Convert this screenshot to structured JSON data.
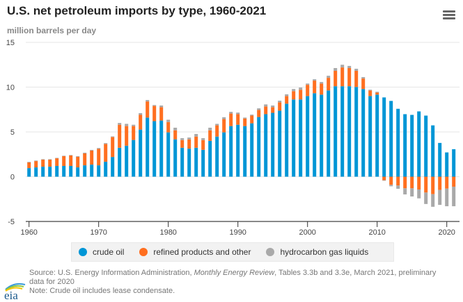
{
  "header": {
    "title": "U.S. net petroleum imports by type, 1960-2021",
    "subtitle": "million barrels per day",
    "menu_icon": "hamburger-menu-icon"
  },
  "colors": {
    "crude": "#0096d6",
    "refined": "#ff6f20",
    "hgl": "#a9a9a9",
    "grid": "#e6e6e6",
    "axis": "#888888"
  },
  "legend": [
    {
      "label": "crude oil",
      "color": "#0096d6"
    },
    {
      "label": "refined products and other",
      "color": "#ff6f20"
    },
    {
      "label": "hydrocarbon gas liquids",
      "color": "#a9a9a9"
    }
  ],
  "footer": {
    "source_prefix": "Source: U.S. Energy Information Administration, ",
    "source_italic": "Monthly Energy Review",
    "source_suffix": ", Tables 3.3b and 3.3e, March 2021, preliminary data for 2020",
    "note": "Note: Crude oil includes lease condensate.",
    "logo_text": "eia"
  },
  "chart_data": {
    "type": "bar",
    "stacked": true,
    "title": "U.S. net petroleum imports by type, 1960-2021",
    "ylabel": "million barrels per day",
    "xlabel": "",
    "ylim": [
      -5,
      15
    ],
    "yticks": [
      -5,
      0,
      5,
      10,
      15
    ],
    "xticks": [
      1960,
      1970,
      1980,
      1990,
      2000,
      2010,
      2020
    ],
    "grid": true,
    "legend_position": "bottom",
    "x": [
      1960,
      1961,
      1962,
      1963,
      1964,
      1965,
      1966,
      1967,
      1968,
      1969,
      1970,
      1971,
      1972,
      1973,
      1974,
      1975,
      1976,
      1977,
      1978,
      1979,
      1980,
      1981,
      1982,
      1983,
      1984,
      1985,
      1986,
      1987,
      1988,
      1989,
      1990,
      1991,
      1992,
      1993,
      1994,
      1995,
      1996,
      1997,
      1998,
      1999,
      2000,
      2001,
      2002,
      2003,
      2004,
      2005,
      2006,
      2007,
      2008,
      2009,
      2010,
      2011,
      2012,
      2013,
      2014,
      2015,
      2016,
      2017,
      2018,
      2019,
      2020,
      2021
    ],
    "series": [
      {
        "name": "crude oil",
        "values": [
          0.96,
          1.04,
          1.12,
          1.12,
          1.2,
          1.2,
          1.2,
          1.04,
          1.27,
          1.35,
          1.27,
          1.67,
          2.2,
          3.23,
          3.46,
          4.1,
          5.26,
          6.6,
          6.2,
          6.27,
          4.95,
          4.17,
          3.23,
          3.13,
          3.23,
          3.0,
          4.0,
          4.48,
          4.95,
          5.65,
          5.8,
          5.65,
          5.96,
          6.66,
          6.98,
          7.13,
          7.37,
          8.15,
          8.62,
          8.62,
          9.0,
          9.32,
          9.16,
          9.63,
          10.1,
          10.1,
          10.1,
          10.02,
          9.79,
          9.0,
          9.16,
          8.85,
          8.46,
          7.58,
          6.98,
          6.9,
          7.29,
          6.82,
          5.73,
          3.77,
          2.71,
          3.07
        ]
      },
      {
        "name": "refined products and other",
        "values": [
          0.63,
          0.7,
          0.78,
          0.78,
          0.85,
          1.09,
          1.17,
          1.17,
          1.33,
          1.56,
          1.83,
          1.98,
          2.23,
          2.57,
          2.19,
          1.55,
          1.64,
          1.8,
          1.7,
          1.49,
          1.15,
          1.01,
          0.86,
          1.04,
          1.25,
          1.09,
          1.18,
          1.25,
          1.48,
          1.4,
          1.18,
          0.85,
          0.86,
          0.79,
          0.86,
          0.63,
          0.93,
          0.85,
          0.93,
          1.09,
          1.26,
          1.41,
          1.24,
          1.41,
          1.72,
          2.1,
          2.03,
          1.8,
          1.17,
          0.63,
          0.24,
          -0.39,
          -0.91,
          -0.99,
          -1.3,
          -1.3,
          -1.43,
          -1.77,
          -1.95,
          -1.48,
          -1.33,
          -1.12
        ]
      },
      {
        "name": "hydrocarbon gas liquids",
        "values": [
          0.06,
          0.06,
          0.05,
          0.05,
          0.05,
          0.05,
          0.05,
          0.08,
          0.08,
          0.08,
          0.1,
          0.1,
          0.07,
          0.2,
          0.25,
          0.15,
          0.2,
          0.16,
          0.1,
          0.19,
          0.26,
          0.29,
          0.21,
          0.2,
          0.29,
          0.21,
          0.29,
          0.17,
          0.21,
          0.19,
          0.18,
          0.1,
          0.11,
          0.18,
          0.23,
          0.19,
          0.19,
          0.2,
          0.24,
          0.24,
          0.14,
          0.15,
          0.17,
          0.23,
          0.31,
          0.3,
          0.24,
          0.23,
          0.16,
          0.08,
          0.08,
          -0.06,
          -0.16,
          -0.36,
          -0.68,
          -0.91,
          -0.99,
          -1.28,
          -1.41,
          -1.67,
          -1.97,
          -2.18
        ]
      }
    ]
  }
}
